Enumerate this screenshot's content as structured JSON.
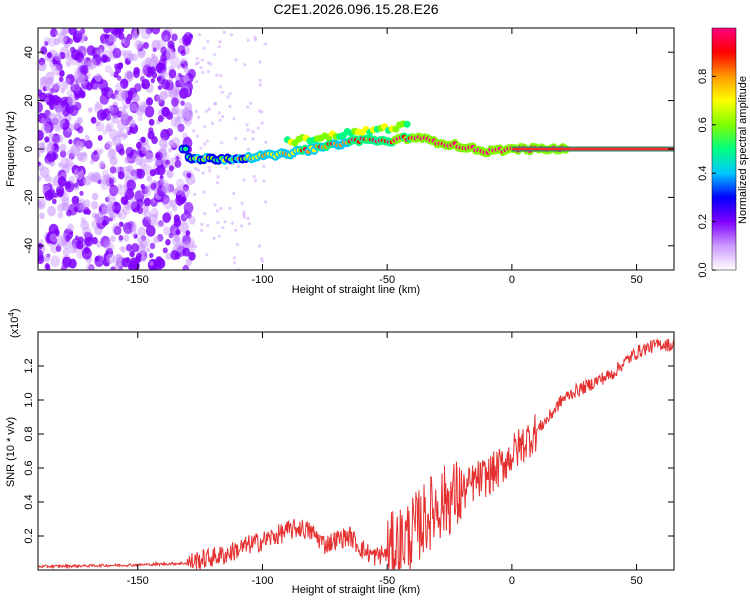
{
  "title": "C2E1.2026.096.15.28.E26",
  "chart_data": [
    {
      "type": "heatmap",
      "name": "spectrogram",
      "xlabel": "Height of straight line (km)",
      "ylabel": "Frequency (Hz)",
      "xlim": [
        -190,
        65
      ],
      "ylim": [
        -50,
        50
      ],
      "x_ticks": [
        -150,
        -100,
        -50,
        0,
        50
      ],
      "y_ticks": [
        40,
        20,
        0,
        -20,
        -40
      ],
      "colorbar": {
        "label": "Normalized spectral amplitude",
        "range": [
          0,
          1
        ],
        "ticks": [
          "0.0",
          "0.2",
          "0.4",
          "0.6",
          "0.8"
        ],
        "colors": [
          "#ffffff",
          "#cc99ff",
          "#7f00ff",
          "#0000ff",
          "#00c8ff",
          "#00ff80",
          "#7fff00",
          "#ffff00",
          "#ff9900",
          "#ff0000",
          "#ff0080"
        ]
      },
      "ridge": {
        "x": [
          -130,
          -115,
          -100,
          -90,
          -80,
          -70,
          -60,
          -50,
          -40,
          -30,
          -20,
          -10,
          0,
          10,
          20,
          40,
          65
        ],
        "freq": [
          -4,
          -4,
          -3,
          -2,
          0,
          2,
          4,
          3,
          5,
          3,
          1,
          -1,
          0,
          0,
          0,
          0,
          0
        ]
      },
      "noise_region_x": [
        -190,
        -128
      ]
    },
    {
      "type": "line",
      "name": "snr",
      "xlabel": "Height of straight line (km)",
      "ylabel": "SNR (10 * v/v)",
      "y_multiplier": "(x10",
      "y_multiplier_exp": "4",
      "xlim": [
        -190,
        65
      ],
      "ylim": [
        0,
        1.4
      ],
      "x_ticks": [
        -150,
        -100,
        -50,
        0,
        50
      ],
      "y_ticks": [
        "0.2",
        "0.4",
        "0.6",
        "0.8",
        "1.0",
        "1.2"
      ],
      "series": [
        {
          "name": "SNR",
          "color": "#e53030",
          "x": [
            -190,
            -170,
            -150,
            -130,
            -125,
            -115,
            -110,
            -105,
            -100,
            -95,
            -90,
            -85,
            -80,
            -75,
            -70,
            -65,
            -60,
            -55,
            -50,
            -45,
            -40,
            -35,
            -30,
            -25,
            -20,
            -15,
            -10,
            -5,
            0,
            5,
            10,
            15,
            20,
            25,
            30,
            35,
            40,
            45,
            50,
            55,
            60,
            65
          ],
          "y": [
            0.02,
            0.025,
            0.03,
            0.04,
            0.06,
            0.09,
            0.12,
            0.15,
            0.17,
            0.2,
            0.23,
            0.25,
            0.22,
            0.15,
            0.18,
            0.2,
            0.12,
            0.08,
            0.1,
            0.16,
            0.22,
            0.3,
            0.38,
            0.42,
            0.45,
            0.52,
            0.55,
            0.6,
            0.68,
            0.75,
            0.82,
            0.9,
            1.0,
            1.05,
            1.08,
            1.12,
            1.15,
            1.22,
            1.28,
            1.31,
            1.33,
            1.32
          ]
        }
      ]
    }
  ]
}
